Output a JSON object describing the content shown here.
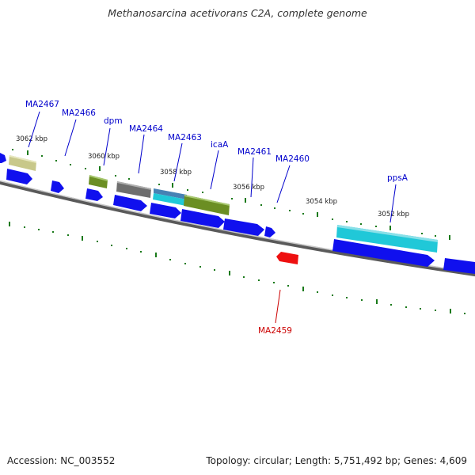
{
  "header": {
    "title": "Methanosarcina acetivorans C2A, complete genome"
  },
  "footer": {
    "accession": "Accession: NC_003552",
    "summary": "Topology: circular; Length: 5,751,492 bp; Genes: 4,609"
  },
  "map": {
    "kbp_ticks": [
      "3062 kbp",
      "3060 kbp",
      "3058 kbp",
      "3056 kbp",
      "3054 kbp",
      "3052 kbp"
    ],
    "gene_labels": [
      {
        "text": "MA2467",
        "color": "#0000cc"
      },
      {
        "text": "MA2466",
        "color": "#0000cc"
      },
      {
        "text": "dpm",
        "color": "#0000cc"
      },
      {
        "text": "MA2464",
        "color": "#0000cc"
      },
      {
        "text": "MA2463",
        "color": "#0000cc"
      },
      {
        "text": "icaA",
        "color": "#0000cc"
      },
      {
        "text": "MA2461",
        "color": "#0000cc"
      },
      {
        "text": "MA2460",
        "color": "#0000cc"
      },
      {
        "text": "ppsA",
        "color": "#0000cc"
      },
      {
        "text": "MA2459",
        "color": "#cc0000"
      }
    ],
    "colors": {
      "backbone": "#8a8a8a",
      "forward_gene": "#1010ee",
      "reverse_gene": "#ee1010",
      "tick": "#1a7a1a",
      "khaki": "#c8c88a",
      "olive": "#6b8e23",
      "grey": "#6e6e6e",
      "cyan": "#20c8d8",
      "steel": "#4682b4"
    }
  }
}
